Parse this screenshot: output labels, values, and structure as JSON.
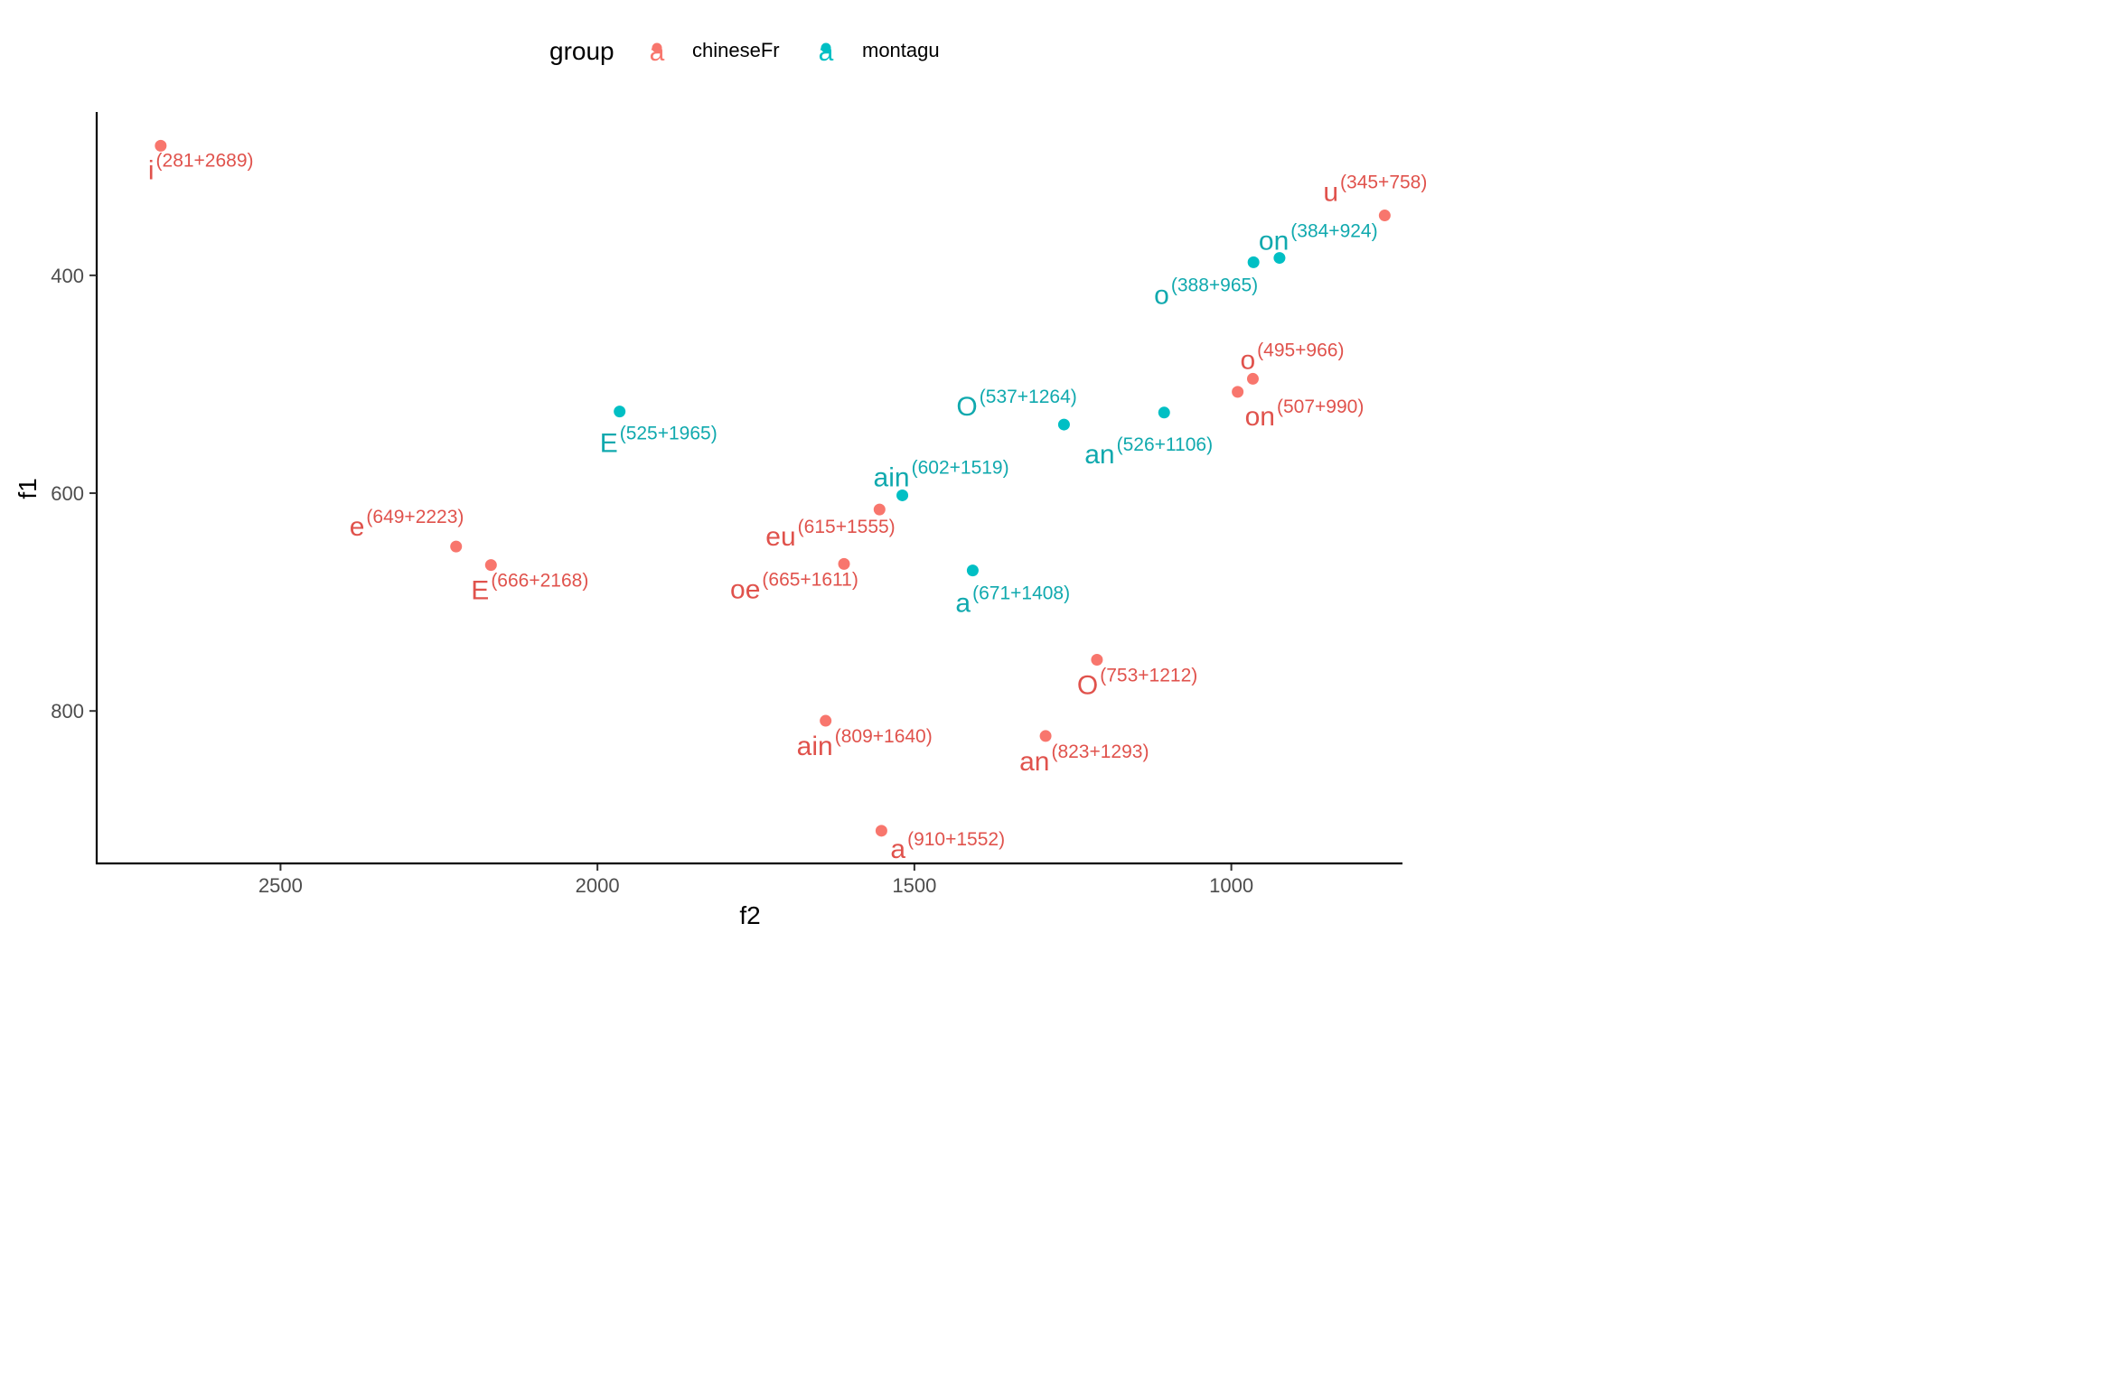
{
  "chart_data": {
    "type": "scatter",
    "title": "",
    "xlabel": "f2",
    "ylabel": "f1",
    "x_reversed": true,
    "y_reversed": true,
    "xlim": [
      2790,
      730
    ],
    "ylim": [
      250,
      940
    ],
    "x_ticks": [
      2500,
      2000,
      1500,
      1000
    ],
    "y_ticks": [
      400,
      600,
      800
    ],
    "x_tick_labels": [
      "2500",
      "2000",
      "1500",
      "1000"
    ],
    "y_tick_labels": [
      "400",
      "600",
      "800"
    ],
    "grid": false,
    "legend": {
      "title": "group",
      "placement": "top",
      "key_glyph": "a",
      "entries": [
        {
          "name": "chineseFr",
          "color": "#F8766D"
        },
        {
          "name": "montagu",
          "color": "#00BFC4"
        }
      ]
    },
    "series": [
      {
        "name": "chineseFr",
        "color": "#F8766D",
        "label_color": "#E0524C",
        "points": [
          {
            "label": "i",
            "annotation": "(281+2689)",
            "x": 2689,
            "y": 281
          },
          {
            "label": "u",
            "annotation": "(345+758)",
            "x": 758,
            "y": 345
          },
          {
            "label": "o",
            "annotation": "(495+966)",
            "x": 966,
            "y": 495
          },
          {
            "label": "on",
            "annotation": "(507+990)",
            "x": 990,
            "y": 507
          },
          {
            "label": "e",
            "annotation": "(649+2223)",
            "x": 2223,
            "y": 649
          },
          {
            "label": "E",
            "annotation": "(666+2168)",
            "x": 2168,
            "y": 666
          },
          {
            "label": "eu",
            "annotation": "(615+1555)",
            "x": 1555,
            "y": 615
          },
          {
            "label": "oe",
            "annotation": "(665+1611)",
            "x": 1611,
            "y": 665
          },
          {
            "label": "O",
            "annotation": "(753+1212)",
            "x": 1212,
            "y": 753
          },
          {
            "label": "ain",
            "annotation": "(809+1640)",
            "x": 1640,
            "y": 809
          },
          {
            "label": "an",
            "annotation": "(823+1293)",
            "x": 1293,
            "y": 823
          },
          {
            "label": "a",
            "annotation": "(910+1552)",
            "x": 1552,
            "y": 910
          }
        ]
      },
      {
        "name": "montagu",
        "color": "#00BFC4",
        "label_color": "#10A9AE",
        "points": [
          {
            "label": "on",
            "annotation": "(384+924)",
            "x": 924,
            "y": 384
          },
          {
            "label": "o",
            "annotation": "(388+965)",
            "x": 965,
            "y": 388
          },
          {
            "label": "E",
            "annotation": "(525+1965)",
            "x": 1965,
            "y": 525
          },
          {
            "label": "O",
            "annotation": "(537+1264)",
            "x": 1264,
            "y": 537
          },
          {
            "label": "an",
            "annotation": "(526+1106)",
            "x": 1106,
            "y": 526
          },
          {
            "label": "ain",
            "annotation": "(602+1519)",
            "x": 1519,
            "y": 602
          },
          {
            "label": "a",
            "annotation": "(671+1408)",
            "x": 1408,
            "y": 671
          }
        ]
      }
    ]
  }
}
